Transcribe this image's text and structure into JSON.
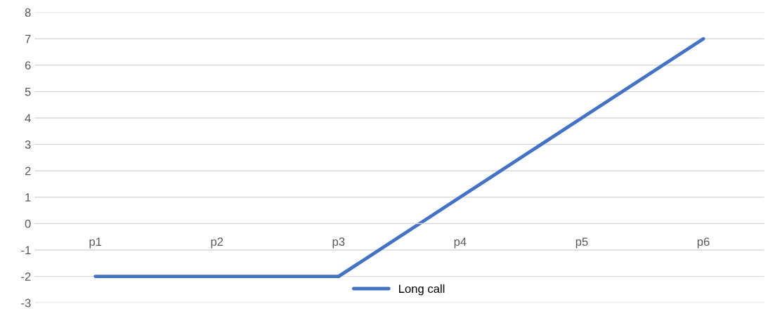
{
  "chart_data": {
    "type": "line",
    "categories": [
      "p1",
      "p2",
      "p3",
      "p4",
      "p5",
      "p6"
    ],
    "series": [
      {
        "name": "Long call",
        "color": "#4472c4",
        "values": [
          -2,
          -2,
          -2,
          1,
          4,
          7
        ]
      }
    ],
    "ylim": [
      -3,
      8
    ],
    "yticks": [
      -3,
      -2,
      -1,
      0,
      1,
      2,
      3,
      4,
      5,
      6,
      7,
      8
    ],
    "grid": "y",
    "legend": "bottom",
    "marker": "none",
    "line_style": "solid"
  }
}
